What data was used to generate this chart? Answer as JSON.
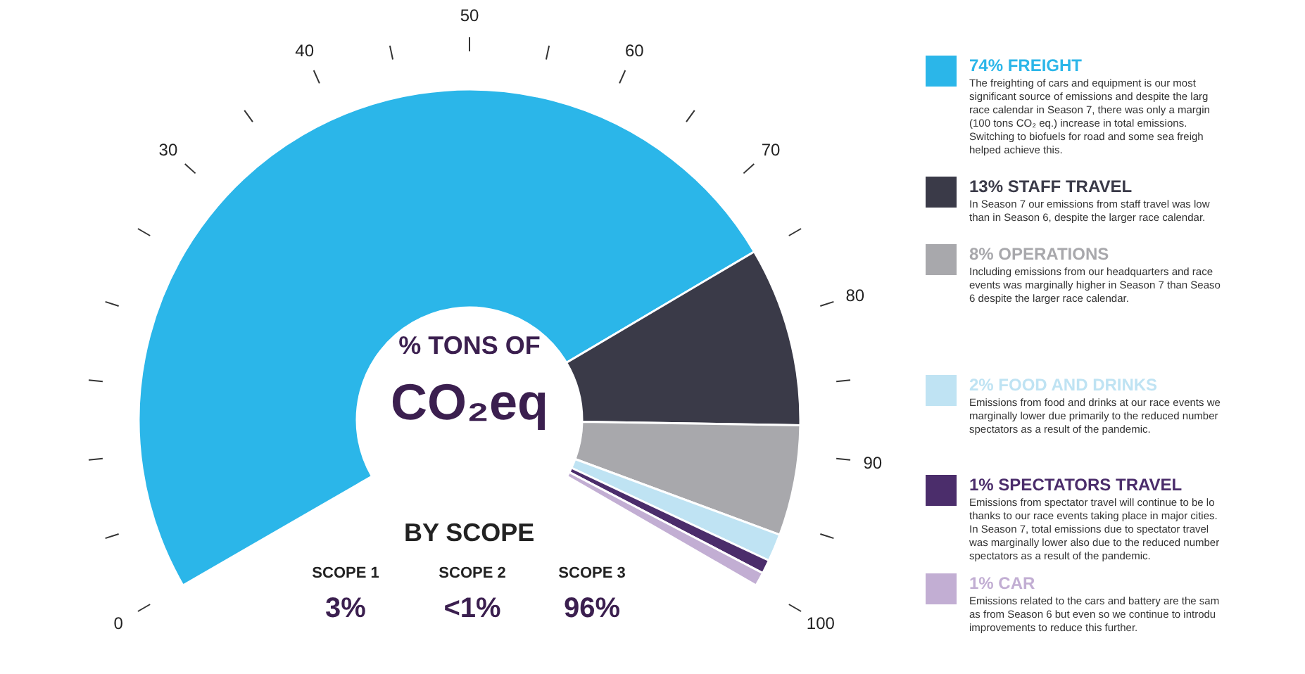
{
  "chart_data": {
    "type": "donut",
    "title": "% TONS OF",
    "subtitle": "CO₂eq",
    "categories": [
      "FREIGHT",
      "STAFF TRAVEL",
      "OPERATIONS",
      "FOOD AND DRINKS",
      "SPECTATORS TRAVEL",
      "CAR"
    ],
    "values": [
      74,
      13,
      8,
      2,
      1,
      1
    ],
    "legend": "right",
    "value_labels": [
      "74%",
      "13%",
      "8%",
      "2%",
      "1%",
      "1%"
    ],
    "colors": [
      "#2bb6e9",
      "#3a3a48",
      "#a8a8ac",
      "#bfe3f3",
      "#4b2d6b",
      "#c2aed3"
    ],
    "annotations": [
      "0",
      "30",
      "40",
      "50",
      "60",
      "70",
      "80",
      "90",
      "100",
      "The freighting of cars and equipment is our most\nsignificant source of emissions and despite the larg\nrace calendar in Season 7, there was only a margin\n(100 tons CO₂ eq.) increase in total emissions.\nSwitching to biofuels for road and some sea freigh\nhelped achieve this.",
      "In Season 7 our emissions from staff travel was low\nthan in Season 6, despite the larger race calendar.",
      "Including emissions from our headquarters and race\nevents was marginally higher in Season 7 than Seaso\n6 despite the larger race calendar.",
      "Emissions from food and drinks at our race events we\nmarginally lower due primarily to the reduced number\nspectators as a result of the pandemic.",
      "Emissions from spectator travel will continue to be lo\nthanks to our race events taking place in major cities.\nIn Season 7, total emissions due to spectator travel\nwas marginally lower also due to the reduced number\nspectators as a result of the pandemic.",
      "Emissions related to the cars and battery are the sam\nas from Season 6  but even so we continue to introdu\nimprovements to reduce this further.",
      "BY SCOPE",
      "SCOPE 1",
      "3%",
      "SCOPE 2",
      "<1%",
      "SCOPE 3",
      "96%"
    ]
  }
}
